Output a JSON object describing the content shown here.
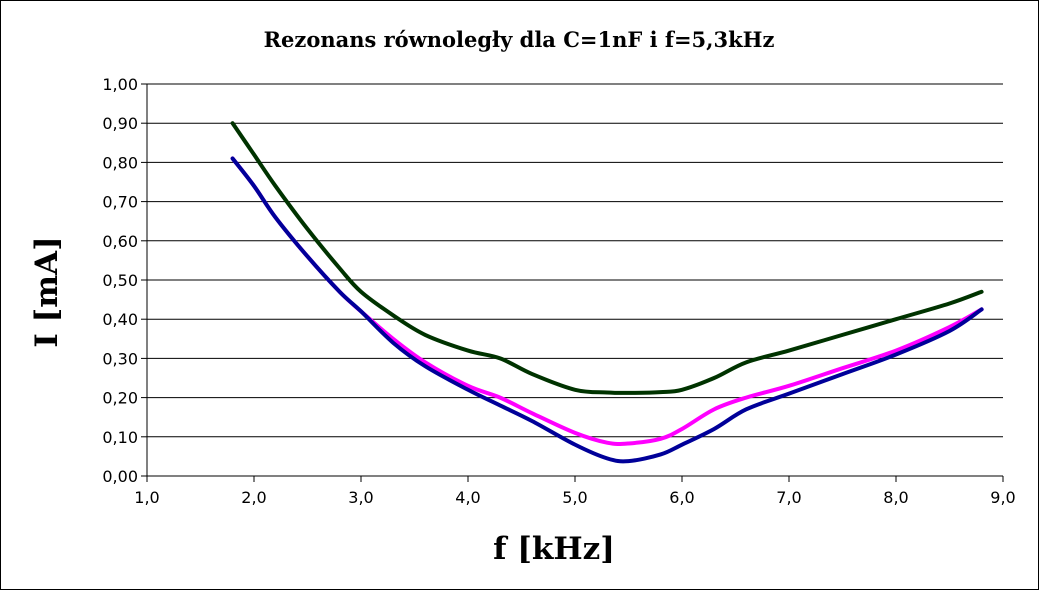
{
  "chart_data": {
    "type": "line",
    "title": "Rezonans równoległy dla C=1nF i f=5,3kHz",
    "xlabel": "f [kHz]",
    "ylabel": "I [mA]",
    "xlim": [
      1.0,
      9.0
    ],
    "ylim": [
      0.0,
      1.0
    ],
    "x_ticks": [
      "1,0",
      "2,0",
      "3,0",
      "4,0",
      "5,0",
      "6,0",
      "7,0",
      "8,0",
      "9,0"
    ],
    "y_ticks": [
      "0,00",
      "0,10",
      "0,20",
      "0,30",
      "0,40",
      "0,50",
      "0,60",
      "0,70",
      "0,80",
      "0,90",
      "1,00"
    ],
    "grid": "horizontal",
    "legend": "none",
    "series": [
      {
        "color": "#003300",
        "points": [
          [
            1.8,
            0.9
          ],
          [
            2.0,
            0.82
          ],
          [
            2.2,
            0.74
          ],
          [
            2.5,
            0.63
          ],
          [
            2.8,
            0.53
          ],
          [
            3.0,
            0.47
          ],
          [
            3.3,
            0.41
          ],
          [
            3.6,
            0.36
          ],
          [
            4.0,
            0.32
          ],
          [
            4.3,
            0.3
          ],
          [
            4.6,
            0.26
          ],
          [
            5.0,
            0.22
          ],
          [
            5.3,
            0.213
          ],
          [
            5.5,
            0.212
          ],
          [
            5.8,
            0.214
          ],
          [
            6.0,
            0.22
          ],
          [
            6.3,
            0.25
          ],
          [
            6.6,
            0.29
          ],
          [
            7.0,
            0.32
          ],
          [
            7.5,
            0.36
          ],
          [
            8.0,
            0.4
          ],
          [
            8.5,
            0.44
          ],
          [
            8.8,
            0.47
          ]
        ]
      },
      {
        "color": "#ff00ff",
        "points": [
          [
            1.8,
            0.81
          ],
          [
            2.0,
            0.74
          ],
          [
            2.2,
            0.66
          ],
          [
            2.5,
            0.56
          ],
          [
            2.8,
            0.47
          ],
          [
            3.0,
            0.42
          ],
          [
            3.3,
            0.35
          ],
          [
            3.6,
            0.29
          ],
          [
            4.0,
            0.23
          ],
          [
            4.3,
            0.2
          ],
          [
            4.6,
            0.16
          ],
          [
            5.0,
            0.11
          ],
          [
            5.3,
            0.085
          ],
          [
            5.5,
            0.083
          ],
          [
            5.8,
            0.095
          ],
          [
            6.0,
            0.12
          ],
          [
            6.3,
            0.17
          ],
          [
            6.6,
            0.2
          ],
          [
            7.0,
            0.23
          ],
          [
            7.5,
            0.275
          ],
          [
            8.0,
            0.32
          ],
          [
            8.5,
            0.38
          ],
          [
            8.8,
            0.425
          ]
        ]
      },
      {
        "color": "#000099",
        "points": [
          [
            1.8,
            0.81
          ],
          [
            2.0,
            0.74
          ],
          [
            2.2,
            0.66
          ],
          [
            2.5,
            0.56
          ],
          [
            2.8,
            0.47
          ],
          [
            3.0,
            0.42
          ],
          [
            3.3,
            0.34
          ],
          [
            3.6,
            0.28
          ],
          [
            4.0,
            0.22
          ],
          [
            4.3,
            0.18
          ],
          [
            4.6,
            0.14
          ],
          [
            5.0,
            0.08
          ],
          [
            5.3,
            0.045
          ],
          [
            5.5,
            0.038
          ],
          [
            5.8,
            0.055
          ],
          [
            6.0,
            0.08
          ],
          [
            6.3,
            0.12
          ],
          [
            6.6,
            0.17
          ],
          [
            7.0,
            0.21
          ],
          [
            7.5,
            0.26
          ],
          [
            8.0,
            0.31
          ],
          [
            8.5,
            0.37
          ],
          [
            8.8,
            0.425
          ]
        ]
      }
    ]
  }
}
